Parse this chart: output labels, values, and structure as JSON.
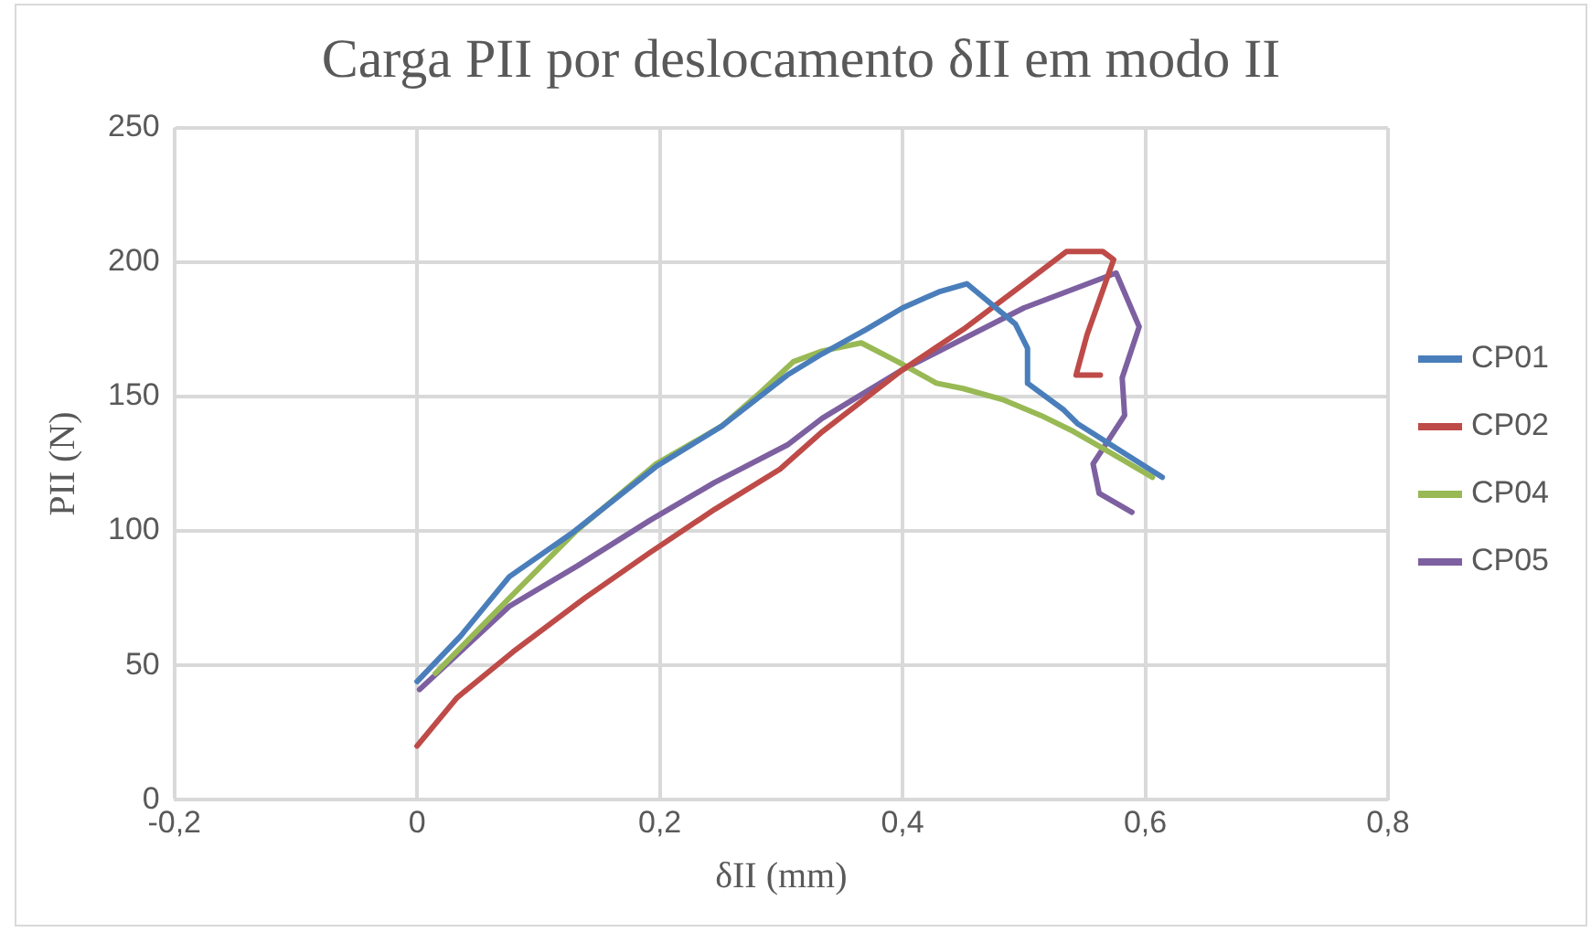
{
  "chart_data": {
    "type": "line",
    "title": "Carga PII por deslocamento δII em modo II",
    "xlabel": "δII (mm)",
    "ylabel": "PII (N)",
    "xlim": [
      -0.2,
      0.8
    ],
    "xticks": [
      {
        "value": -0.2,
        "label": "-0,2"
      },
      {
        "value": 0,
        "label": "0"
      },
      {
        "value": 0.2,
        "label": "0,2"
      },
      {
        "value": 0.4,
        "label": "0,4"
      },
      {
        "value": 0.6,
        "label": "0,6"
      },
      {
        "value": 0.8,
        "label": "0,8"
      }
    ],
    "ylim": [
      0,
      250
    ],
    "yticks": [
      0,
      50,
      100,
      150,
      200,
      250
    ],
    "grid": true,
    "legend": "right",
    "marker": "none",
    "line_style": "solid",
    "series": [
      {
        "name": "CP01",
        "color": "#4a7ebb",
        "x": [
          0,
          0.036,
          0.076,
          0.127,
          0.197,
          0.251,
          0.305,
          0.334,
          0.37,
          0.4,
          0.43,
          0.453,
          0.493,
          0.503,
          0.503,
          0.533,
          0.544,
          0.614
        ],
        "values": [
          44,
          61,
          83,
          99,
          124,
          139,
          158,
          166,
          175,
          183,
          189,
          192,
          177,
          168,
          155,
          145,
          140,
          120
        ]
      },
      {
        "name": "CP02",
        "color": "#be4b48",
        "x": [
          0,
          0.033,
          0.079,
          0.138,
          0.192,
          0.245,
          0.299,
          0.334,
          0.4,
          0.45,
          0.5,
          0.535,
          0.565,
          0.574,
          0.552,
          0.543,
          0.563
        ],
        "values": [
          20,
          38,
          55,
          75,
          92,
          108,
          123,
          137,
          160,
          175,
          192,
          204,
          204,
          201,
          173,
          158,
          158
        ]
      },
      {
        "name": "CP04",
        "color": "#98b954",
        "x": [
          0.015,
          0.076,
          0.131,
          0.197,
          0.251,
          0.284,
          0.31,
          0.334,
          0.366,
          0.396,
          0.428,
          0.45,
          0.482,
          0.514,
          0.541,
          0.568,
          0.606
        ],
        "values": [
          47,
          75,
          100,
          125,
          139,
          152,
          163,
          167,
          170,
          163,
          155,
          153,
          149,
          143,
          137,
          130,
          120
        ]
      },
      {
        "name": "CP05",
        "color": "#7d60a0",
        "x": [
          0.002,
          0.076,
          0.132,
          0.192,
          0.245,
          0.305,
          0.334,
          0.4,
          0.5,
          0.576,
          0.595,
          0.581,
          0.583,
          0.557,
          0.562,
          0.589
        ],
        "values": [
          41,
          72,
          87,
          104,
          118,
          132,
          142,
          160,
          183,
          196,
          176,
          157,
          143,
          125,
          114,
          107
        ]
      }
    ]
  }
}
